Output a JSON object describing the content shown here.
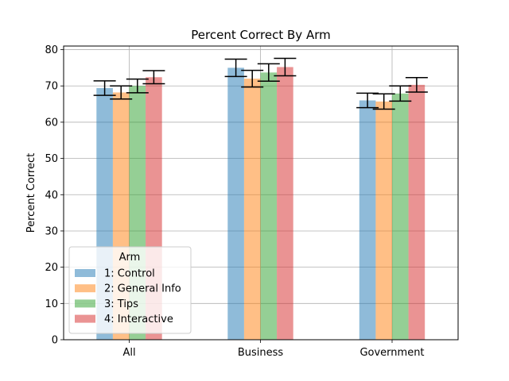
{
  "chart_data": {
    "type": "bar",
    "title": "Percent Correct By Arm",
    "xlabel": "",
    "ylabel": "Percent Correct",
    "ylim": [
      0,
      81
    ],
    "yticks": [
      0,
      10,
      20,
      30,
      40,
      50,
      60,
      70,
      80
    ],
    "grid": true,
    "categories": [
      "All",
      "Business",
      "Government"
    ],
    "legend": {
      "title": "Arm",
      "placement": "lower-left"
    },
    "series": [
      {
        "name": "1: Control",
        "color": "#1f77b4",
        "values": [
          69.4,
          75.0,
          66.0
        ],
        "errors": [
          2.0,
          2.4,
          2.0
        ]
      },
      {
        "name": "2: General Info",
        "color": "#ff7f0e",
        "values": [
          68.2,
          72.0,
          65.7
        ],
        "errors": [
          1.8,
          2.3,
          2.1
        ]
      },
      {
        "name": "3: Tips",
        "color": "#2ca02c",
        "values": [
          70.0,
          73.7,
          67.9
        ],
        "errors": [
          1.9,
          2.4,
          2.1
        ]
      },
      {
        "name": "4: Interactive",
        "color": "#d62728",
        "values": [
          72.4,
          75.2,
          70.3
        ],
        "errors": [
          1.8,
          2.4,
          2.0
        ]
      }
    ]
  }
}
